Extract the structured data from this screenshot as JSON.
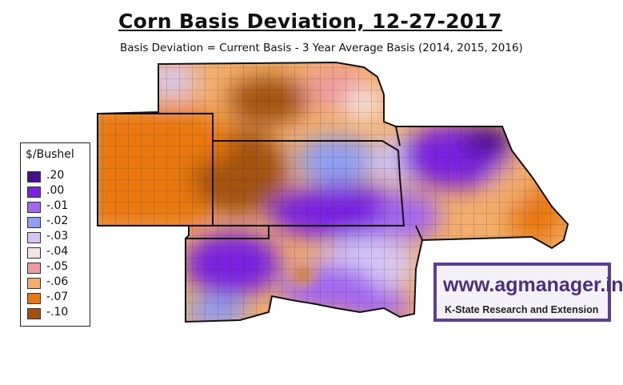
{
  "title": "Corn Basis Deviation, 12-27-2017",
  "subtitle": "Basis Deviation = Current Basis - 3 Year Average Basis (2014, 2015, 2016)",
  "legend": {
    "title": "$/Bushel",
    "items": [
      {
        "label": ".20",
        "color": "#4a0f8f"
      },
      {
        "label": ".00",
        "color": "#7a22e0"
      },
      {
        "label": "-.01",
        "color": "#a366f0"
      },
      {
        "label": "-.02",
        "color": "#8f9ef2"
      },
      {
        "label": "-.03",
        "color": "#d7c7f5"
      },
      {
        "label": "-.04",
        "color": "#f6e3e3"
      },
      {
        "label": "-.05",
        "color": "#ef9aa0"
      },
      {
        "label": "-.06",
        "color": "#f2ae6a"
      },
      {
        "label": "-.07",
        "color": "#e9780f"
      },
      {
        "label": "-.10",
        "color": "#a3520e"
      }
    ]
  },
  "logo": {
    "url": "www.agmanager.info",
    "org": "K-State Research and Extension"
  }
}
